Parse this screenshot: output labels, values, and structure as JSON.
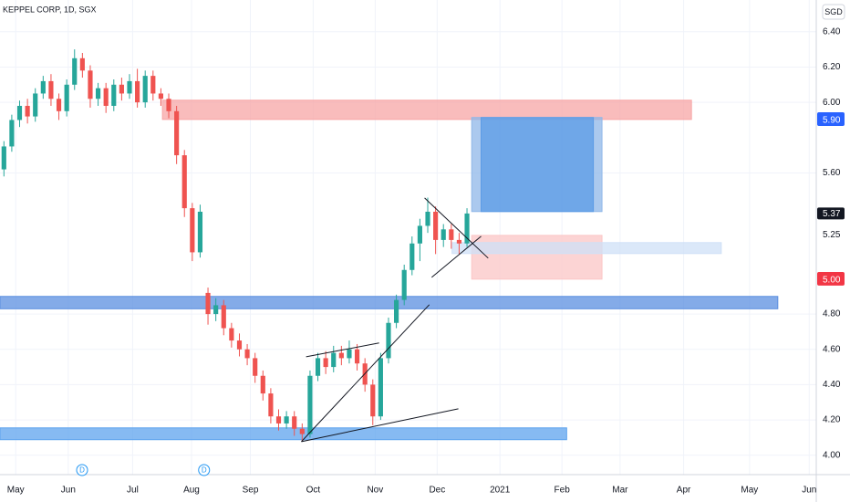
{
  "chart_data": {
    "type": "candlestick",
    "title": "KEPPEL CORP, 1D, SGX",
    "currency": "SGD",
    "up_color": "#26a69a",
    "down_color": "#ef5350",
    "grid": true,
    "xlim": [
      -0.5,
      103.5
    ],
    "ylim": [
      3.89,
      6.58
    ],
    "yticks": [
      {
        "value": 6.4,
        "label": "6.40"
      },
      {
        "value": 6.2,
        "label": "6.20"
      },
      {
        "value": 6.0,
        "label": "6.00"
      },
      {
        "value": 5.6,
        "label": "5.60"
      },
      {
        "value": 4.8,
        "label": "4.80"
      },
      {
        "value": 4.6,
        "label": "4.60"
      },
      {
        "value": 4.4,
        "label": "4.40"
      },
      {
        "value": 4.2,
        "label": "4.20"
      },
      {
        "value": 4.0,
        "label": "4.00"
      }
    ],
    "xticks": [
      {
        "value": 1.5,
        "label": "May"
      },
      {
        "value": 8.2,
        "label": "Jun"
      },
      {
        "value": 16.4,
        "label": "Jul"
      },
      {
        "value": 23.9,
        "label": "Aug"
      },
      {
        "value": 31.4,
        "label": "Sep"
      },
      {
        "value": 39.4,
        "label": "Oct"
      },
      {
        "value": 47.3,
        "label": "Nov"
      },
      {
        "value": 55.2,
        "label": "Dec"
      },
      {
        "value": 63.2,
        "label": "2021"
      },
      {
        "value": 71.1,
        "label": "Feb"
      },
      {
        "value": 78.5,
        "label": "Mar"
      },
      {
        "value": 86.6,
        "label": "Apr"
      },
      {
        "value": 95,
        "label": "May"
      },
      {
        "value": 102.6,
        "label": "Jun"
      }
    ],
    "open": [
      5.62,
      5.75,
      5.9,
      5.98,
      5.92,
      6.05,
      6.12,
      6.02,
      5.95,
      6.1,
      6.25,
      6.18,
      6.02,
      6.08,
      5.98,
      6.1,
      6.05,
      6.12,
      6.0,
      6.15,
      6.05,
      6.02,
      5.95,
      5.7,
      5.4,
      5.15,
      4.92,
      4.8,
      4.85,
      4.72,
      4.65,
      4.6,
      4.55,
      4.45,
      4.35,
      4.22,
      4.18,
      4.22,
      4.15,
      4.12,
      4.45,
      4.55,
      4.5,
      4.58,
      4.55,
      4.6,
      4.52,
      4.4,
      4.22,
      4.55,
      4.75,
      4.88,
      5.05,
      5.2,
      5.3,
      5.38,
      5.22,
      5.28,
      5.22,
      5.2
    ],
    "high": [
      5.78,
      5.93,
      6.01,
      6.02,
      6.08,
      6.15,
      6.16,
      6.05,
      6.13,
      6.3,
      6.28,
      6.21,
      6.11,
      6.11,
      6.13,
      6.14,
      6.16,
      6.19,
      6.18,
      6.18,
      6.08,
      6.05,
      5.98,
      5.73,
      5.43,
      5.42,
      4.95,
      4.89,
      4.88,
      4.75,
      4.69,
      4.63,
      4.58,
      4.48,
      4.38,
      4.26,
      4.25,
      4.25,
      4.18,
      4.48,
      4.58,
      4.59,
      4.62,
      4.62,
      4.65,
      4.63,
      4.55,
      4.43,
      4.58,
      4.78,
      4.91,
      5.08,
      5.24,
      5.34,
      5.46,
      5.41,
      5.31,
      5.31,
      5.26,
      5.4
    ],
    "low": [
      5.58,
      5.72,
      5.86,
      5.88,
      5.89,
      6.02,
      5.98,
      5.9,
      5.92,
      6.07,
      6.14,
      5.97,
      5.98,
      5.94,
      5.95,
      6.01,
      6.02,
      5.97,
      5.97,
      6.01,
      5.98,
      5.91,
      5.65,
      5.35,
      5.1,
      5.12,
      4.74,
      4.76,
      4.68,
      4.61,
      4.56,
      4.51,
      4.41,
      4.31,
      4.18,
      4.14,
      4.15,
      4.11,
      4.08,
      4.1,
      4.42,
      4.46,
      4.47,
      4.51,
      4.52,
      4.48,
      4.36,
      4.17,
      4.2,
      4.52,
      4.72,
      4.85,
      5.02,
      5.1,
      5.26,
      5.14,
      5.18,
      5.17,
      5.14,
      5.18
    ],
    "close": [
      5.75,
      5.9,
      5.98,
      5.92,
      6.05,
      6.12,
      6.02,
      5.95,
      6.1,
      6.25,
      6.18,
      6.02,
      6.08,
      5.98,
      6.1,
      6.05,
      6.12,
      6.0,
      6.15,
      6.05,
      6.02,
      5.95,
      5.7,
      5.4,
      5.15,
      5.38,
      4.8,
      4.85,
      4.72,
      4.65,
      4.6,
      4.55,
      4.45,
      4.35,
      4.22,
      4.18,
      4.22,
      4.15,
      4.12,
      4.45,
      4.55,
      4.5,
      4.58,
      4.55,
      4.6,
      4.52,
      4.4,
      4.22,
      4.55,
      4.75,
      4.88,
      5.05,
      5.2,
      5.3,
      5.38,
      5.22,
      5.28,
      5.22,
      5.2,
      5.37
    ],
    "zones": [
      {
        "x": [
          20.2,
          87.6
        ],
        "y": [
          5.903,
          6.012
        ],
        "color": "#f7a5a5"
      },
      {
        "x": [
          -0.5,
          98.6
        ],
        "y": [
          4.83,
          4.9
        ],
        "color": "#5b8fe0"
      },
      {
        "x": [
          -0.5,
          71.7
        ],
        "y": [
          4.088,
          4.155
        ],
        "color": "#5ea3ee"
      },
      {
        "x": [
          59.6,
          76.2
        ],
        "y": [
          5.381,
          5.914
        ],
        "color": "#8fb7e8"
      },
      {
        "x": [
          60.8,
          75.1
        ],
        "y": [
          5.381,
          5.914
        ],
        "color": "#5b9be6"
      },
      {
        "x": [
          59.6,
          76.2
        ],
        "y": [
          4.998,
          5.246
        ],
        "color": "#fbc6c6"
      },
      {
        "x": [
          57.1,
          91.4
        ],
        "y": [
          5.143,
          5.205
        ],
        "color": "#cfe0f7"
      }
    ],
    "trendlines": [
      {
        "points": [
          [
            37.9,
            4.077
          ],
          [
            54.2,
            4.853
          ]
        ]
      },
      {
        "points": [
          [
            37.9,
            4.077
          ],
          [
            57.9,
            4.263
          ]
        ]
      },
      {
        "points": [
          [
            38.5,
            4.558
          ],
          [
            47.8,
            4.636
          ]
        ]
      },
      {
        "points": [
          [
            53.6,
            5.458
          ],
          [
            61.7,
            5.117
          ]
        ]
      },
      {
        "points": [
          [
            54.5,
            5.008
          ],
          [
            60.8,
            5.241
          ]
        ]
      }
    ],
    "price_labels": [
      {
        "value": 5.91,
        "label": "5.91",
        "color": "#2962ff",
        "text_color": "#ffffff"
      },
      {
        "value": 5.9,
        "label": "5.90",
        "color": "#2962ff",
        "text_color": "#ffffff"
      },
      {
        "value": 5.38,
        "label": "5.38",
        "color": "#ffffff",
        "text_color": "#131722"
      },
      {
        "value": 5.37,
        "label": "5.37",
        "color": "#131722",
        "text_color": "#ffffff"
      },
      {
        "value": 5.25,
        "label": "5.25",
        "color": "#ffffff",
        "text_color": "#131722"
      },
      {
        "value": 5.005,
        "label": "5.00",
        "color": "#f23645",
        "text_color": "#ffffff"
      },
      {
        "value": 4.995,
        "label": "5.00",
        "color": "#f23645",
        "text_color": "#ffffff"
      }
    ],
    "events": [
      {
        "x": 9.96,
        "label": "D"
      },
      {
        "x": 25.5,
        "label": "D"
      }
    ]
  }
}
